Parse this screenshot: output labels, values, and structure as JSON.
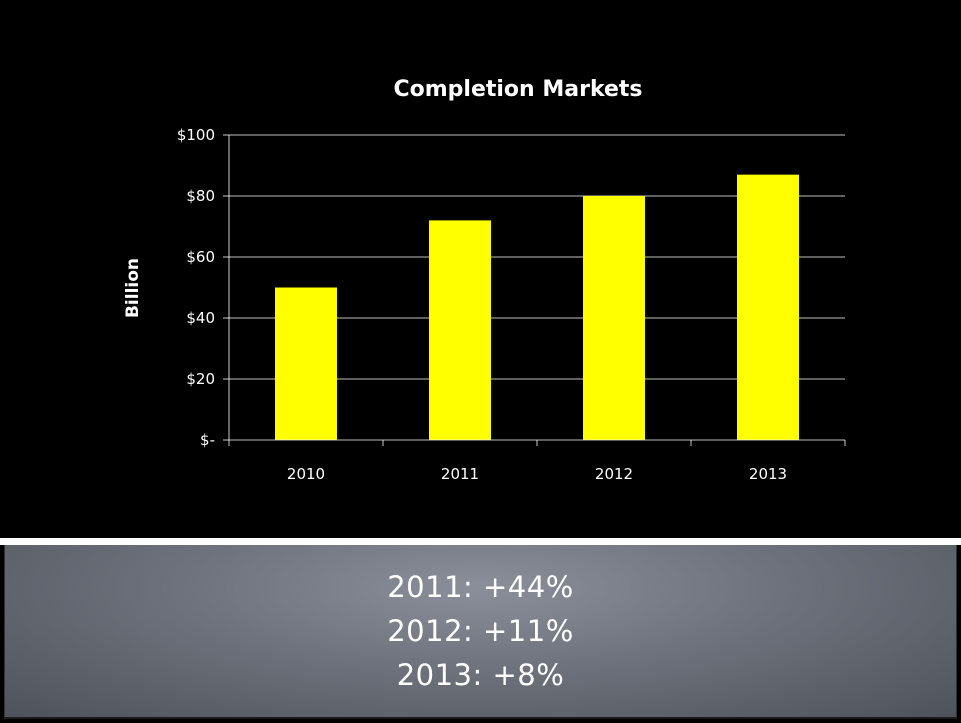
{
  "chart_data": {
    "type": "bar",
    "title": "Completion Markets",
    "ylabel": "Billion",
    "xlabel": "",
    "categories": [
      "2010",
      "2011",
      "2012",
      "2013"
    ],
    "values": [
      50,
      72,
      80,
      87
    ],
    "ylim": [
      0,
      100
    ],
    "yticks": [
      0,
      20,
      40,
      60,
      80,
      100
    ],
    "ytick_labels": [
      "$-",
      "$20",
      "$40",
      "$60",
      "$80",
      "$100"
    ],
    "grid": true,
    "legend": "none",
    "bar_color": "#ffff00",
    "background_color": "#000000",
    "grid_color": "#ffffff",
    "text_color": "#ffffff"
  },
  "notes": {
    "lines": [
      "2011:  +44%",
      "2012:  +11%",
      "2013:  +8%"
    ]
  },
  "colors": {
    "divider": "#ffffff",
    "notes_text": "#ffffff"
  }
}
